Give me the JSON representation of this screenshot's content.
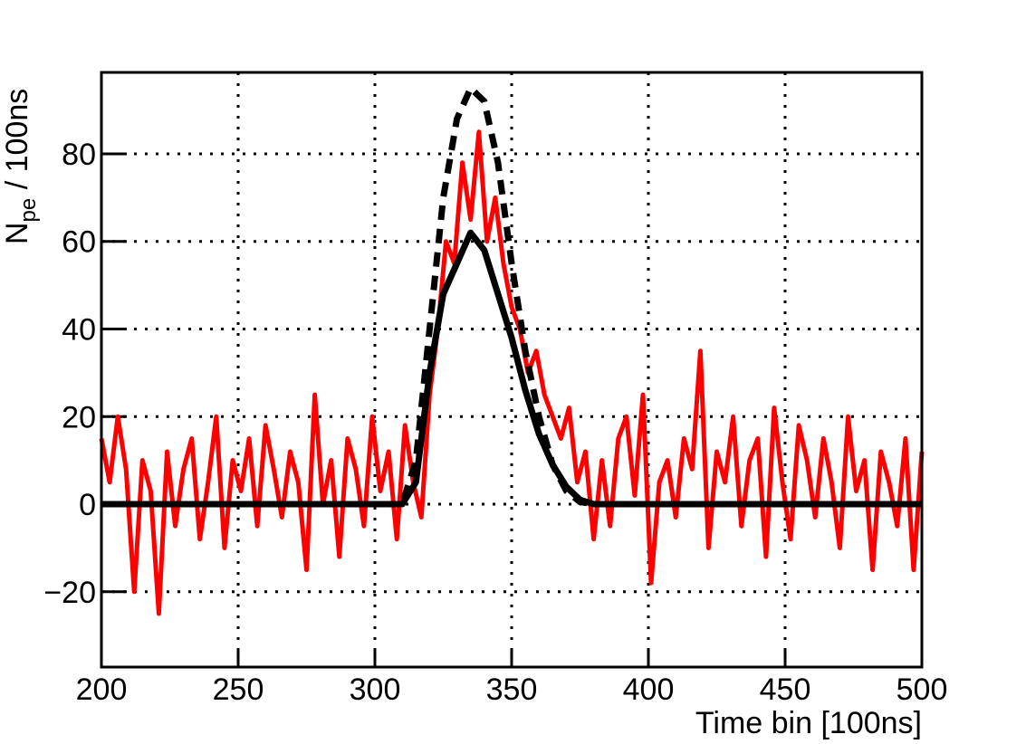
{
  "chart_data": {
    "type": "line",
    "xlabel": "Time bin [100ns]",
    "ylabel": {
      "main": "N",
      "sub": "pe",
      "rest": " / 100ns"
    },
    "xlim": [
      200,
      500
    ],
    "xticks": [
      200,
      250,
      300,
      350,
      400,
      450,
      500
    ],
    "ylim": [
      -37.2,
      98.6
    ],
    "yticks": [
      {
        "value": -20,
        "label": "−20"
      },
      0,
      20,
      40,
      60,
      80
    ],
    "grid": true,
    "series": [
      {
        "color": "#ff0000",
        "style": "solid",
        "x": [
          200,
          203,
          206,
          209,
          212,
          215,
          218,
          221,
          224,
          227,
          230,
          233,
          236,
          239,
          242,
          245,
          248,
          251,
          254,
          257,
          260,
          263,
          266,
          269,
          272,
          275,
          278,
          281,
          284,
          287,
          290,
          293,
          296,
          299,
          302,
          305,
          308,
          311,
          314,
          317,
          320,
          323,
          326,
          329,
          332,
          335,
          338,
          341,
          344,
          347,
          350,
          353,
          356,
          359,
          362,
          365,
          368,
          371,
          374,
          377,
          380,
          383,
          386,
          389,
          392,
          395,
          398,
          401,
          404,
          407,
          410,
          413,
          416,
          419,
          422,
          425,
          428,
          431,
          434,
          437,
          440,
          443,
          446,
          449,
          452,
          455,
          458,
          461,
          464,
          467,
          470,
          473,
          476,
          479,
          482,
          485,
          488,
          491,
          494,
          497,
          500
        ],
        "values": [
          15,
          5,
          20,
          8,
          -20,
          10,
          3,
          -25,
          12,
          -5,
          8,
          15,
          -8,
          5,
          20,
          -10,
          10,
          3,
          15,
          -5,
          18,
          8,
          -3,
          12,
          5,
          -15,
          25,
          0,
          10,
          -12,
          15,
          8,
          -5,
          20,
          3,
          12,
          -8,
          18,
          5,
          -3,
          25,
          40,
          60,
          55,
          78,
          65,
          85,
          60,
          70,
          55,
          45,
          40,
          30,
          35,
          25,
          20,
          15,
          22,
          5,
          12,
          -8,
          10,
          -5,
          15,
          20,
          2,
          25,
          -18,
          5,
          10,
          -3,
          15,
          8,
          35,
          -10,
          12,
          5,
          20,
          -5,
          10,
          15,
          -12,
          22,
          5,
          -8,
          18,
          10,
          -3,
          15,
          5,
          -10,
          20,
          3,
          10,
          -15,
          12,
          5,
          -5,
          15,
          -15,
          12
        ]
      },
      {
        "color": "#000000",
        "style": "dashed",
        "x": [
          200,
          310,
          315,
          320,
          325,
          330,
          335,
          340,
          345,
          350,
          355,
          360,
          365,
          370,
          375,
          380,
          500
        ],
        "values": [
          0,
          0,
          10,
          40,
          70,
          88,
          95,
          92,
          78,
          55,
          35,
          20,
          9,
          3,
          0.5,
          0,
          0
        ]
      },
      {
        "color": "#000000",
        "style": "solid",
        "x": [
          200,
          310,
          315,
          320,
          325,
          330,
          335,
          340,
          345,
          350,
          355,
          360,
          365,
          370,
          375,
          380,
          500
        ],
        "values": [
          0,
          0,
          5,
          30,
          48,
          55,
          62,
          58,
          48,
          38,
          26,
          16,
          9,
          4,
          1,
          0,
          0
        ]
      }
    ]
  }
}
